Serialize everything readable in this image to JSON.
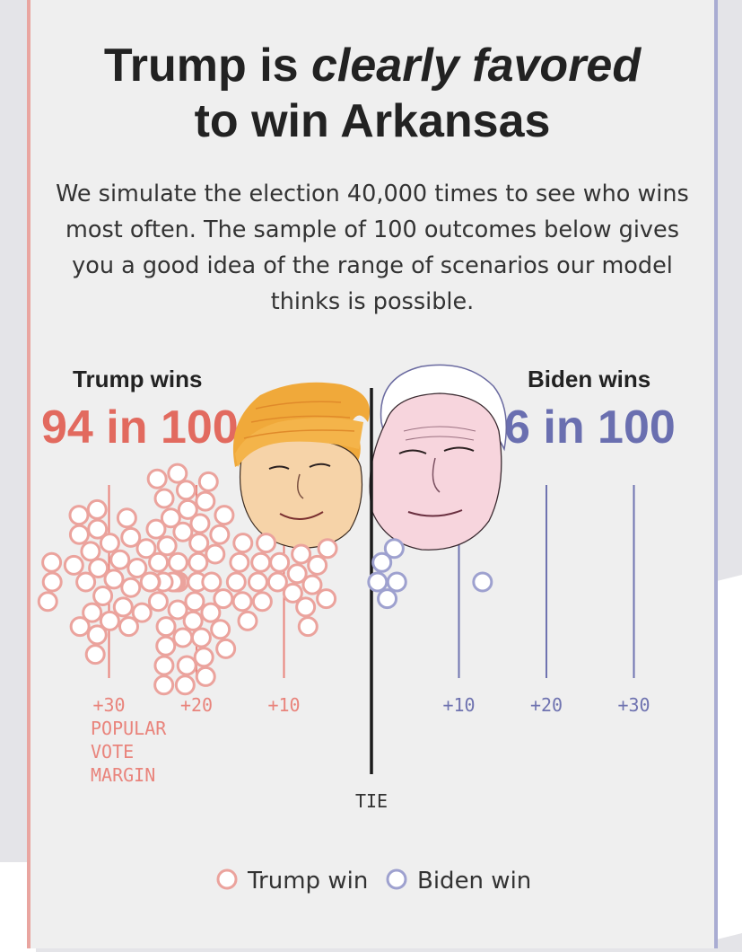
{
  "title": {
    "part1": "Trump is ",
    "part2": "clearly favored",
    "part3": "to win Arkansas"
  },
  "subtitle": "We simulate the election 40,000 times to see who wins most often. The sample of 100 outcomes below gives you a good idea of the range of scenarios our model thinks is possible.",
  "colors": {
    "trump": "#e9847c",
    "trump_text": "#e26a5f",
    "trump_circle": "#eba39d",
    "biden": "#6f73b0",
    "biden_text": "#6a6fb0",
    "biden_circle": "#9ea1cf",
    "tie_line": "#1a1a1a"
  },
  "trump_panel": {
    "label": "Trump wins",
    "count": "94 in 100"
  },
  "biden_panel": {
    "label": "Biden wins",
    "count": "6 in 100"
  },
  "chart_data": {
    "type": "scatter",
    "title": "",
    "xlabel": "POPULAR VOTE MARGIN",
    "tie_label": "TIE",
    "x_ticks_trump": [
      "+30",
      "+20",
      "+10"
    ],
    "x_ticks_biden": [
      "+10",
      "+20",
      "+30"
    ],
    "tick_values": [
      -30,
      -20,
      -10,
      10,
      20,
      30
    ],
    "xlim": [
      -30,
      30
    ],
    "x_units": "margin (negative = Trump margin, positive = Biden margin)",
    "legend": [
      {
        "name": "Trump win",
        "series": "trump"
      },
      {
        "name": "Biden win",
        "series": "biden"
      }
    ],
    "legend_position": "bottom",
    "series": [
      {
        "name": "Trump win",
        "count": 94
      },
      {
        "name": "Biden win",
        "count": 6,
        "values": [
          0.7,
          1.2,
          1.8,
          2.6,
          2.9,
          12.7
        ]
      }
    ]
  }
}
